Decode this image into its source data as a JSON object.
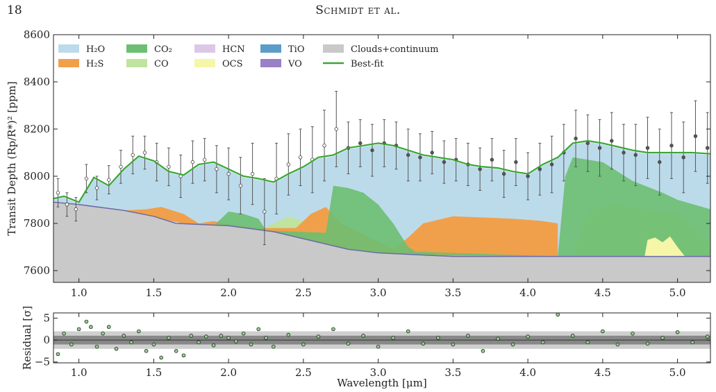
{
  "page": {
    "number": "18",
    "running_head": "Schmidt et al."
  },
  "chart_data": [
    {
      "type": "area",
      "panel": "spectrum",
      "ylabel": "Transit Depth (Rp/R*)² [ppm]",
      "xlim": [
        0.83,
        5.22
      ],
      "ylim": [
        7550,
        8600
      ],
      "yticks": [
        7600,
        7800,
        8000,
        8200,
        8400,
        8600
      ],
      "ytick_labels": [
        "7600",
        "7800",
        "8000",
        "8200",
        "8400",
        "8600"
      ],
      "xticks": [
        1.0,
        1.5,
        2.0,
        2.5,
        3.0,
        3.5,
        4.0,
        4.5,
        5.0
      ],
      "xtick_labels": [
        "1.0",
        "1.5",
        "2.0",
        "2.5",
        "3.0",
        "3.5",
        "4.0",
        "4.5",
        "5.0"
      ],
      "legend_position": "top",
      "legend": [
        {
          "name": "H₂O",
          "color": "#bcdbea",
          "kind": "patch"
        },
        {
          "name": "H₂S",
          "color": "#f0a04b",
          "kind": "patch"
        },
        {
          "name": "CO₂",
          "color": "#6dbe72",
          "kind": "patch"
        },
        {
          "name": "CO",
          "color": "#c0e3a0",
          "kind": "patch"
        },
        {
          "name": "HCN",
          "color": "#dcc8e6",
          "kind": "patch"
        },
        {
          "name": "OCS",
          "color": "#f6f6a8",
          "kind": "patch"
        },
        {
          "name": "TiO",
          "color": "#5b9dc8",
          "kind": "patch"
        },
        {
          "name": "VO",
          "color": "#9a80c6",
          "kind": "patch"
        },
        {
          "name": "Clouds+continuum",
          "color": "#c9c9c9",
          "kind": "patch"
        },
        {
          "name": "Best-fit",
          "color": "#3aa534",
          "kind": "line"
        }
      ],
      "continuum": {
        "x": [
          0.83,
          1.0,
          1.3,
          1.5,
          1.65,
          2.0,
          2.3,
          2.5,
          2.8,
          3.0,
          3.5,
          4.0,
          4.5,
          5.22
        ],
        "y": [
          7890,
          7880,
          7855,
          7830,
          7800,
          7790,
          7765,
          7735,
          7690,
          7675,
          7660,
          7660,
          7660,
          7660
        ]
      },
      "bestfit": {
        "x": [
          0.83,
          0.9,
          1.0,
          1.1,
          1.2,
          1.3,
          1.4,
          1.5,
          1.6,
          1.7,
          1.8,
          1.9,
          2.0,
          2.1,
          2.2,
          2.3,
          2.4,
          2.5,
          2.6,
          2.7,
          2.8,
          2.9,
          3.0,
          3.1,
          3.2,
          3.3,
          3.4,
          3.5,
          3.6,
          3.7,
          3.8,
          3.9,
          4.0,
          4.1,
          4.2,
          4.3,
          4.4,
          4.5,
          4.6,
          4.7,
          4.8,
          4.9,
          5.0,
          5.1,
          5.22
        ],
        "y": [
          7905,
          7915,
          7890,
          7995,
          7960,
          8030,
          8085,
          8065,
          8020,
          8005,
          8050,
          8060,
          8030,
          8000,
          7990,
          7975,
          8010,
          8040,
          8080,
          8090,
          8120,
          8130,
          8140,
          8130,
          8110,
          8090,
          8080,
          8070,
          8050,
          8040,
          8035,
          8020,
          8010,
          8050,
          8080,
          8140,
          8150,
          8140,
          8125,
          8110,
          8100,
          8100,
          8100,
          8100,
          8095
        ]
      },
      "h2o": {
        "x": [
          0.83,
          0.9,
          1.0,
          1.1,
          1.2,
          1.3,
          1.4,
          1.5,
          1.6,
          1.7,
          1.8,
          1.9,
          2.0,
          2.1,
          2.2,
          2.3,
          2.4,
          2.5,
          2.6,
          2.7,
          2.8,
          2.9,
          3.0,
          3.1,
          3.2,
          3.3,
          3.4,
          3.5,
          3.6,
          3.7,
          3.8,
          3.9,
          4.0,
          4.1,
          4.2,
          4.3,
          4.4,
          4.5,
          4.6,
          4.7,
          4.8,
          4.9,
          5.0,
          5.1,
          5.22
        ],
        "y": [
          7900,
          7910,
          7885,
          7990,
          7955,
          8025,
          8080,
          8060,
          8015,
          8000,
          8045,
          8055,
          8025,
          7995,
          7985,
          7970,
          8005,
          8035,
          8075,
          8085,
          8115,
          8125,
          8135,
          8125,
          8105,
          8085,
          8075,
          8065,
          8045,
          8035,
          8030,
          8015,
          8005,
          8045,
          8075,
          8135,
          8145,
          8135,
          8120,
          8105,
          8095,
          8095,
          8095,
          8095,
          8090
        ]
      },
      "h2s": {
        "x": [
          1.3,
          1.45,
          1.55,
          1.7,
          1.8,
          1.9,
          2.0,
          2.2,
          2.45,
          2.55,
          2.65,
          2.75,
          3.1,
          3.2,
          3.3,
          3.5,
          3.7,
          3.9,
          4.1,
          4.2
        ],
        "y": [
          7855,
          7860,
          7870,
          7840,
          7800,
          7810,
          7795,
          7780,
          7780,
          7840,
          7870,
          7800,
          7690,
          7740,
          7800,
          7830,
          7825,
          7820,
          7810,
          7800
        ]
      },
      "co2": {
        "x": [
          1.9,
          2.0,
          2.1,
          2.2,
          2.25,
          2.65,
          2.7,
          2.8,
          2.9,
          3.0,
          3.1,
          3.2,
          3.25,
          4.2,
          4.25,
          4.3,
          4.5,
          4.7,
          4.9,
          5.0,
          5.22
        ],
        "y": [
          7790,
          7850,
          7840,
          7820,
          7770,
          7760,
          7960,
          7950,
          7930,
          7880,
          7800,
          7700,
          7680,
          7660,
          8000,
          8080,
          8060,
          7980,
          7930,
          7900,
          7860
        ]
      },
      "co": {
        "x": [
          2.2,
          2.3,
          2.4,
          2.5,
          2.6,
          4.3,
          4.4,
          4.6,
          4.8,
          5.0,
          5.22
        ],
        "y": [
          7770,
          7800,
          7830,
          7810,
          7740,
          7660,
          7850,
          7880,
          7860,
          7840,
          7720
        ]
      },
      "ocs": {
        "x": [
          4.78,
          4.8,
          4.85,
          4.9,
          4.95,
          5.0,
          5.05
        ],
        "y": [
          7660,
          7730,
          7740,
          7720,
          7745,
          7700,
          7660
        ]
      },
      "data_points": {
        "x": [
          0.86,
          0.92,
          0.98,
          1.05,
          1.12,
          1.2,
          1.28,
          1.36,
          1.44,
          1.52,
          1.6,
          1.68,
          1.76,
          1.84,
          1.92,
          2.0,
          2.08,
          2.16,
          2.24,
          2.32,
          2.4,
          2.48,
          2.56,
          2.64,
          2.72,
          2.8,
          2.88,
          2.96,
          3.04,
          3.12,
          3.2,
          3.28,
          3.36,
          3.44,
          3.52,
          3.6,
          3.68,
          3.76,
          3.84,
          3.92,
          4.0,
          4.08,
          4.16,
          4.24,
          4.32,
          4.4,
          4.48,
          4.56,
          4.64,
          4.72,
          4.8,
          4.88,
          4.96,
          5.04,
          5.12,
          5.2
        ],
        "y": [
          7930,
          7880,
          7860,
          7990,
          7950,
          7985,
          8040,
          8090,
          8100,
          8060,
          8040,
          8000,
          8060,
          8070,
          8030,
          8010,
          7960,
          8010,
          7850,
          7990,
          8050,
          8080,
          8070,
          8130,
          8200,
          8120,
          8140,
          8110,
          8140,
          8130,
          8090,
          8080,
          8100,
          8060,
          8070,
          8050,
          8030,
          8070,
          8010,
          8060,
          8000,
          8030,
          8050,
          8100,
          8160,
          8140,
          8120,
          8150,
          8100,
          8090,
          8120,
          8060,
          8130,
          8080,
          8170,
          8120
        ],
        "err": [
          60,
          50,
          50,
          60,
          50,
          60,
          70,
          80,
          70,
          80,
          80,
          90,
          90,
          90,
          100,
          110,
          120,
          130,
          140,
          150,
          130,
          120,
          140,
          150,
          160,
          110,
          100,
          110,
          100,
          100,
          110,
          100,
          90,
          90,
          90,
          90,
          90,
          90,
          100,
          100,
          100,
          110,
          120,
          120,
          120,
          120,
          120,
          120,
          120,
          130,
          130,
          140,
          140,
          150,
          150,
          150
        ]
      }
    },
    {
      "type": "scatter",
      "panel": "residuals",
      "ylabel": "Residual [σ]",
      "xlabel": "Wavelength [μm]",
      "xlim": [
        0.83,
        5.22
      ],
      "ylim": [
        -5.2,
        6.2
      ],
      "yticks": [
        -5,
        0,
        5
      ],
      "ytick_labels": [
        "−5",
        "0",
        "5"
      ],
      "xticks": [
        1.0,
        1.5,
        2.0,
        2.5,
        3.0,
        3.5,
        4.0,
        4.5,
        5.0
      ],
      "xtick_labels": [
        "1.0",
        "1.5",
        "2.0",
        "2.5",
        "3.0",
        "3.5",
        "4.0",
        "4.5",
        "5.0"
      ],
      "bands": [
        {
          "sigma": 1,
          "color": "#888888"
        },
        {
          "sigma": 2,
          "color": "#cfcfcf"
        }
      ],
      "point_color": "#8fd08a",
      "x": [
        0.86,
        0.9,
        0.95,
        1.0,
        1.05,
        1.08,
        1.12,
        1.16,
        1.2,
        1.25,
        1.3,
        1.35,
        1.4,
        1.45,
        1.5,
        1.55,
        1.6,
        1.65,
        1.7,
        1.75,
        1.8,
        1.85,
        1.9,
        1.95,
        2.0,
        2.05,
        2.1,
        2.15,
        2.2,
        2.25,
        2.3,
        2.4,
        2.5,
        2.6,
        2.7,
        2.8,
        2.9,
        3.0,
        3.1,
        3.2,
        3.3,
        3.4,
        3.5,
        3.6,
        3.7,
        3.8,
        3.9,
        4.0,
        4.1,
        4.2,
        4.3,
        4.4,
        4.5,
        4.6,
        4.7,
        4.8,
        4.9,
        5.0,
        5.1,
        5.2
      ],
      "y": [
        -3.2,
        1.5,
        -1.0,
        2.5,
        4.2,
        3.0,
        -1.5,
        1.5,
        3.0,
        -2.0,
        1.0,
        -0.5,
        2.0,
        -2.5,
        -1.0,
        -4.0,
        0.5,
        -2.5,
        -3.5,
        1.0,
        -0.5,
        0.8,
        -1.2,
        1.0,
        0.5,
        -0.3,
        1.5,
        -1.0,
        2.5,
        0.5,
        -1.5,
        1.2,
        -1.0,
        0.8,
        2.5,
        -0.8,
        1.0,
        -1.5,
        0.5,
        2.0,
        -0.8,
        0.5,
        -1.0,
        1.0,
        -2.5,
        0.3,
        -1.0,
        0.8,
        -0.5,
        5.8,
        1.0,
        -0.5,
        2.0,
        -1.0,
        1.5,
        -0.8,
        0.5,
        1.8,
        -0.5,
        0.8
      ]
    }
  ]
}
